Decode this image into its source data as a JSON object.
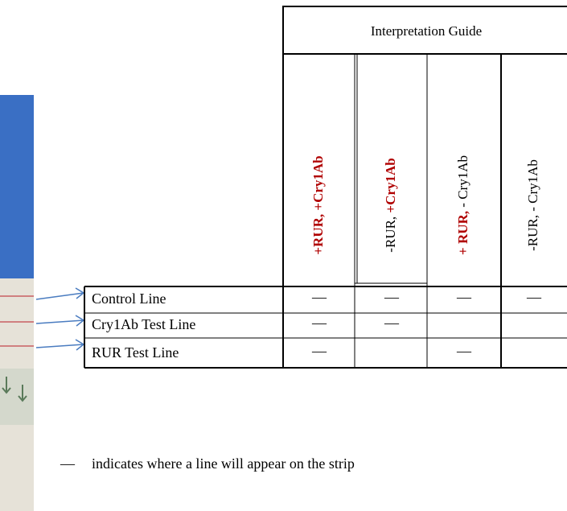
{
  "guide": {
    "title": "Interpretation Guide",
    "columns": [
      {
        "parts": [
          {
            "text": "+RUR, +Cry1Ab",
            "color": "#b00000"
          }
        ]
      },
      {
        "parts": [
          {
            "text": "-RUR, ",
            "color": "#000000"
          },
          {
            "text": "+Cry1Ab",
            "color": "#b00000"
          }
        ]
      },
      {
        "parts": [
          {
            "text": "+ RUR,",
            "color": "#b00000"
          },
          {
            "text": " - Cry1Ab",
            "color": "#000000"
          }
        ]
      },
      {
        "parts": [
          {
            "text": "-RUR, - Cry1Ab",
            "color": "#000000"
          }
        ]
      }
    ],
    "rows": [
      {
        "label": "Control Line",
        "cells": [
          "—",
          "—",
          "—",
          "—"
        ]
      },
      {
        "label": "Cry1Ab Test Line",
        "cells": [
          "—",
          "—",
          null,
          null
        ]
      },
      {
        "label": "RUR Test Line",
        "cells": [
          "—",
          null,
          "—",
          null
        ]
      }
    ]
  },
  "footnote": {
    "symbol": "—",
    "text": "indicates where a line will appear on the strip"
  }
}
